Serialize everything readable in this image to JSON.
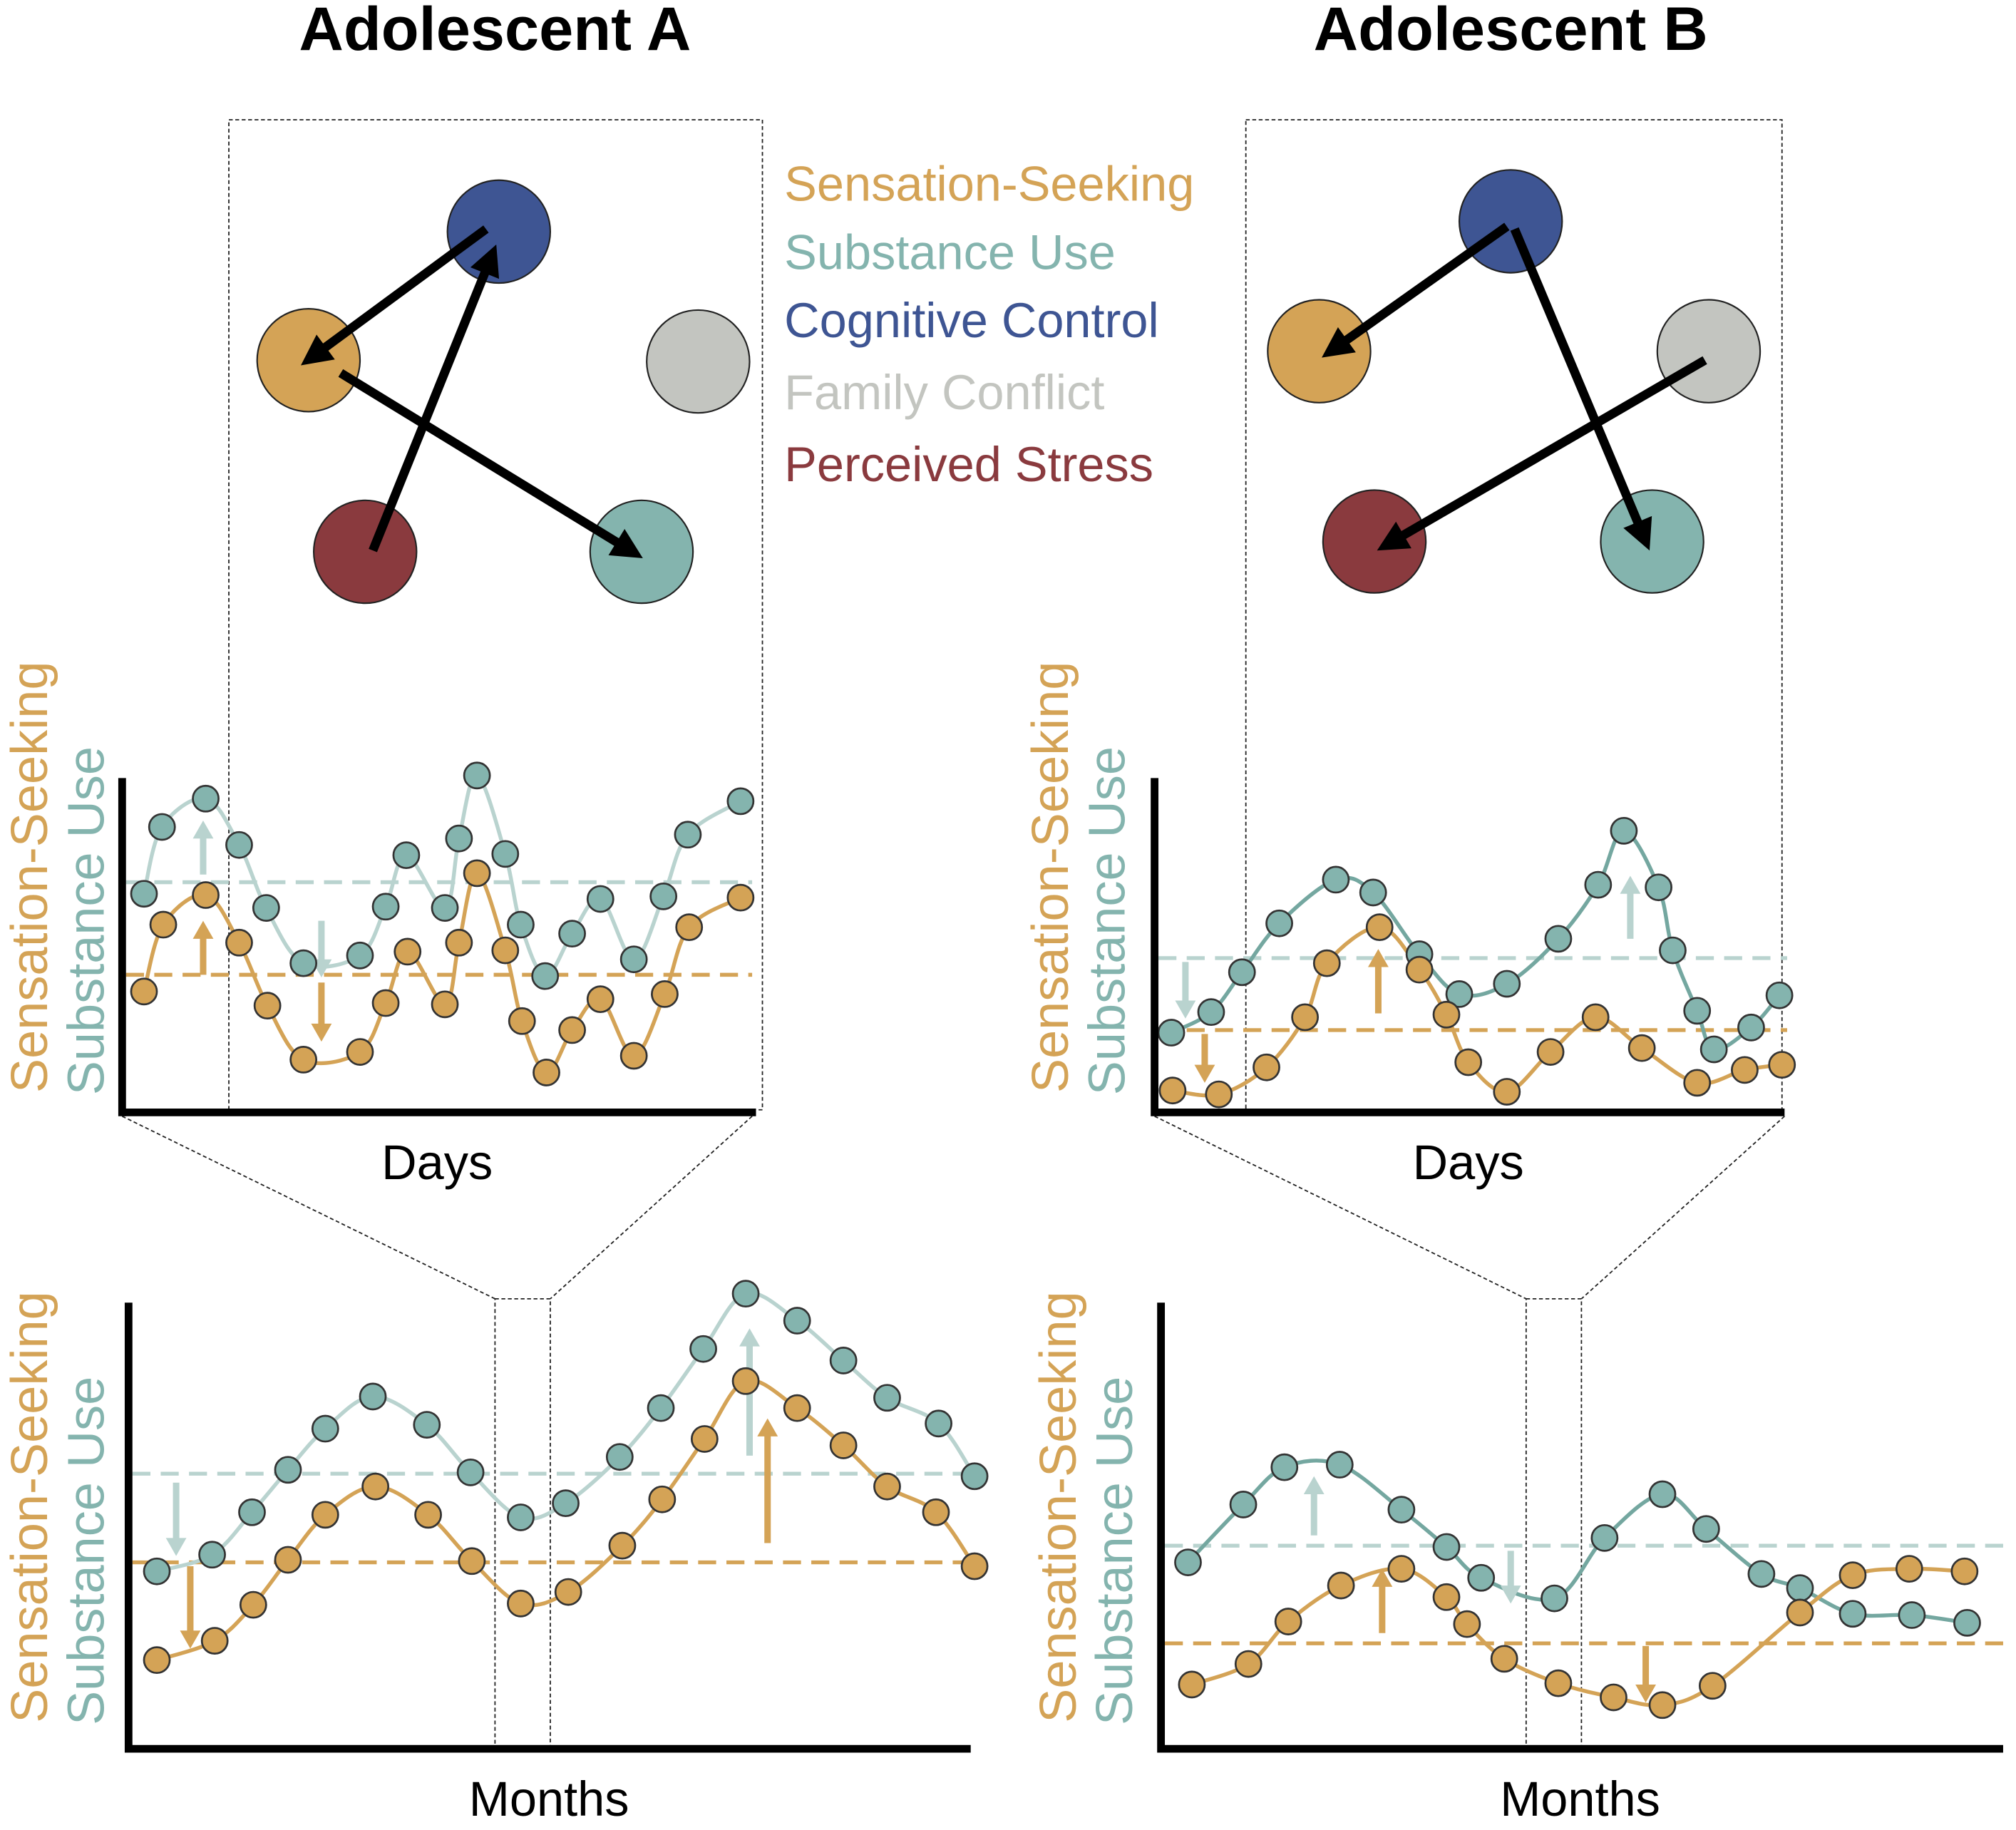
{
  "panels": [
    {
      "title": "Adolescent A",
      "daily": {
        "y_label_1": "Sensation-Seeking",
        "y_label_2": "Substance Use",
        "x_label": "Days"
      },
      "monthly": {
        "y_label_1": "Sensation-Seeking",
        "y_label_2": "Substance Use",
        "x_label": "Months"
      }
    },
    {
      "title": "Adolescent B",
      "daily": {
        "y_label_1": "Sensation-Seeking",
        "y_label_2": "Substance Use",
        "x_label": "Days"
      },
      "monthly": {
        "y_label_1": "Sensation-Seeking",
        "y_label_2": "Substance Use",
        "x_label": "Months"
      }
    }
  ],
  "legend": [
    {
      "label": "Sensation-Seeking",
      "color": "#d4a356"
    },
    {
      "label": "Substance Use",
      "color": "#84b4ae"
    },
    {
      "label": "Cognitive Control",
      "color": "#3e5593"
    },
    {
      "label": "Family Conflict",
      "color": "#c3c5c0"
    },
    {
      "label": "Perceived Stress",
      "color": "#8a3a3e"
    }
  ]
}
